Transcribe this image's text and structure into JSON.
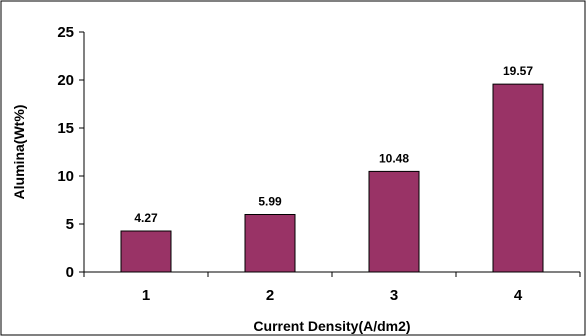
{
  "chart_data": {
    "type": "bar",
    "categories": [
      "1",
      "2",
      "3",
      "4"
    ],
    "values": [
      4.27,
      5.99,
      10.48,
      19.57
    ],
    "data_labels": [
      "4.27",
      "5.99",
      "10.48",
      "19.57"
    ],
    "title": "",
    "xlabel": "Current Density(A/dm2)",
    "ylabel": "Alumina(Wt%)",
    "ylim": [
      0,
      25
    ],
    "yticks": [
      "0",
      "5",
      "10",
      "15",
      "20",
      "25"
    ],
    "grid": false,
    "legend": "none",
    "colors": {
      "bar_fill": "#993366",
      "bar_stroke": "#000000",
      "frame": "#000000"
    }
  }
}
